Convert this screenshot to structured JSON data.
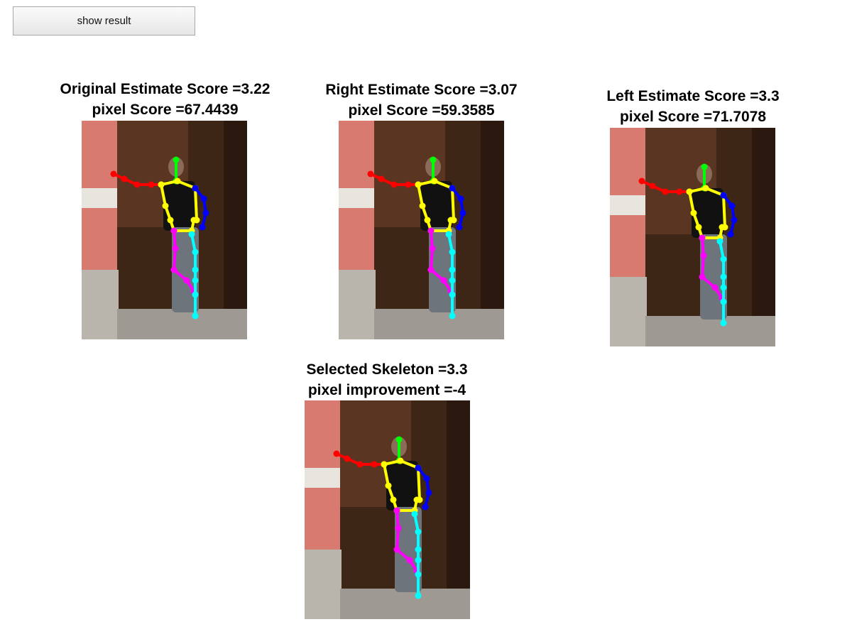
{
  "toolbar": {
    "show_result_label": "show result"
  },
  "panels": [
    {
      "title": "Original Estimate Score =3.22",
      "subtitle": "pixel Score =67.4439"
    },
    {
      "title": "Right Estimate Score =3.07",
      "subtitle": "pixel Score =59.3585"
    },
    {
      "title": "Left Estimate Score =3.3",
      "subtitle": "pixel Score =71.7078"
    },
    {
      "title": "Selected Skeleton =3.3",
      "subtitle": "pixel improvement =-4"
    }
  ],
  "colors": {
    "head": "#00ff00",
    "right_arm": "#ff0000",
    "torso": "#ffff00",
    "left_arm": "#0000ff",
    "right_leg": "#ff00ff",
    "left_leg": "#00ffff"
  }
}
